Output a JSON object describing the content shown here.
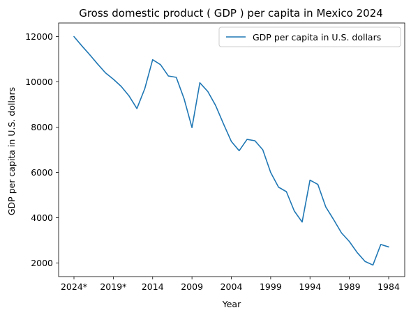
{
  "chart_data": {
    "type": "line",
    "title": "Gross domestic product ( GDP ) per capita in Mexico 2024",
    "xlabel": "Year",
    "ylabel": "GDP per capita in U.S. dollars",
    "x": [
      "2024*",
      "2023*",
      "2022*",
      "2021*",
      "2020*",
      "2019*",
      "2018",
      "2017",
      "2016",
      "2015",
      "2014",
      "2013",
      "2012",
      "2011",
      "2010",
      "2009",
      "2008",
      "2007",
      "2006",
      "2005",
      "2004",
      "2003",
      "2002",
      "2001",
      "2000",
      "1999",
      "1998",
      "1997",
      "1996",
      "1995",
      "1994",
      "1993",
      "1992",
      "1991",
      "1990",
      "1989",
      "1988",
      "1987",
      "1986",
      "1985",
      "1984"
    ],
    "x_tick_labels": [
      "2024*",
      "2019*",
      "2014",
      "2009",
      "2004",
      "1999",
      "1994",
      "1989",
      "1984"
    ],
    "y_ticks": [
      2000,
      4000,
      6000,
      8000,
      10000,
      12000
    ],
    "ylim": [
      1400,
      12600
    ],
    "grid": false,
    "legend_position": "top-right",
    "series": [
      {
        "name": "GDP per capita in U.S. dollars",
        "color": "#1f77b4",
        "values": [
          12000,
          11590,
          11200,
          10790,
          10400,
          10120,
          9800,
          9380,
          8820,
          9700,
          10980,
          10760,
          10260,
          10200,
          9250,
          7980,
          9960,
          9580,
          8960,
          8150,
          7370,
          6960,
          7460,
          7400,
          7000,
          6000,
          5350,
          5150,
          4300,
          3810,
          5660,
          5470,
          4480,
          3920,
          3330,
          2950,
          2460,
          2070,
          1910,
          2820,
          2710
        ]
      }
    ]
  }
}
